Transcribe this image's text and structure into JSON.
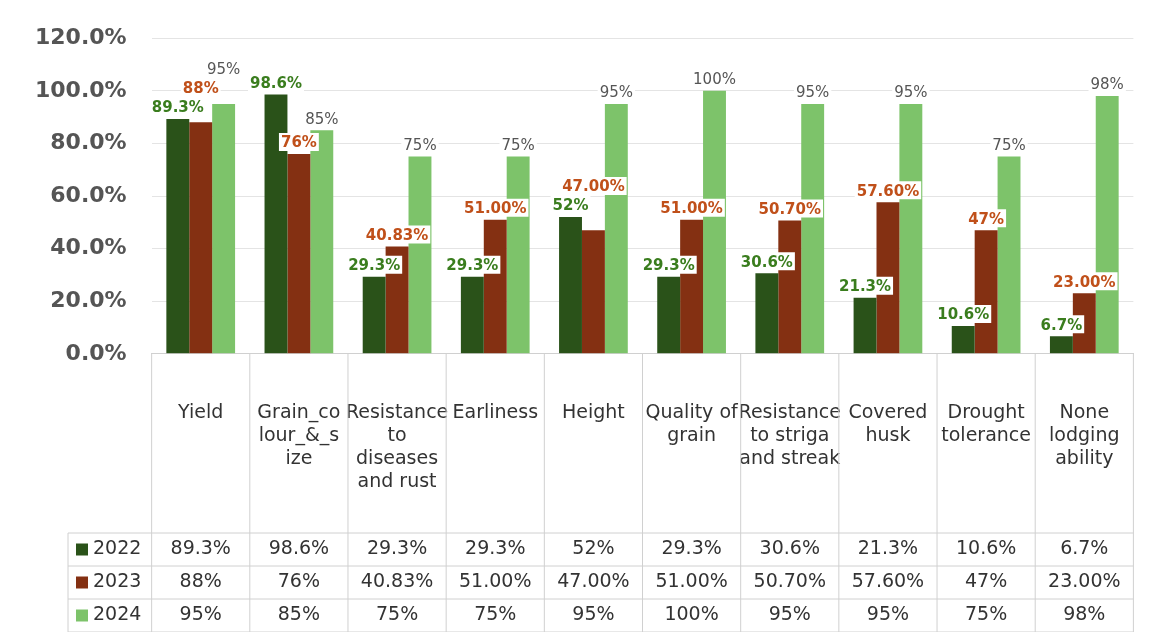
{
  "chart_data": {
    "type": "bar",
    "categories": [
      "Yield",
      "Grain_colour_&_size",
      "Resistance to diseases and rust",
      "Earliness",
      "Height",
      "Quality of grain",
      "Resistance to striga and streak",
      "Covered husk",
      "Drought tolerance",
      "None lodging ability"
    ],
    "series": [
      {
        "name": "2022",
        "color": "#2a5219",
        "values": [
          89.3,
          98.6,
          29.3,
          29.3,
          52,
          29.3,
          30.6,
          21.3,
          10.6,
          6.7
        ],
        "value_labels": [
          "89.3%",
          "98.6%",
          "29.3%",
          "29.3%",
          "52%",
          "29.3%",
          "30.6%",
          "21.3%",
          "10.6%",
          "6.7%"
        ]
      },
      {
        "name": "2023",
        "color": "#843012",
        "values": [
          88,
          76,
          40.83,
          51,
          47,
          51,
          50.7,
          57.6,
          47,
          23
        ],
        "value_labels": [
          "88%",
          "76%",
          "40.83%",
          "51.00%",
          "47.00%",
          "51.00%",
          "50.70%",
          "57.60%",
          "47%",
          "23.00%"
        ]
      },
      {
        "name": "2024",
        "color": "#7dc36a",
        "values": [
          95,
          85,
          75,
          75,
          95,
          100,
          95,
          95,
          75,
          98
        ],
        "value_labels": [
          "95%",
          "85%",
          "75%",
          "75%",
          "95%",
          "100%",
          "95%",
          "95%",
          "75%",
          "98%"
        ]
      }
    ],
    "ylim": [
      0,
      120
    ],
    "yticks": [
      {
        "value": 0,
        "label": "0.0%"
      },
      {
        "value": 20,
        "label": "20.0%"
      },
      {
        "value": 40,
        "label": "40.0%"
      },
      {
        "value": 60,
        "label": "60.0%"
      },
      {
        "value": 80,
        "label": "80.0%"
      },
      {
        "value": 100,
        "label": "100.0%"
      },
      {
        "value": 120,
        "label": "120.0%"
      }
    ],
    "grid": "y",
    "legend": "bottom"
  }
}
